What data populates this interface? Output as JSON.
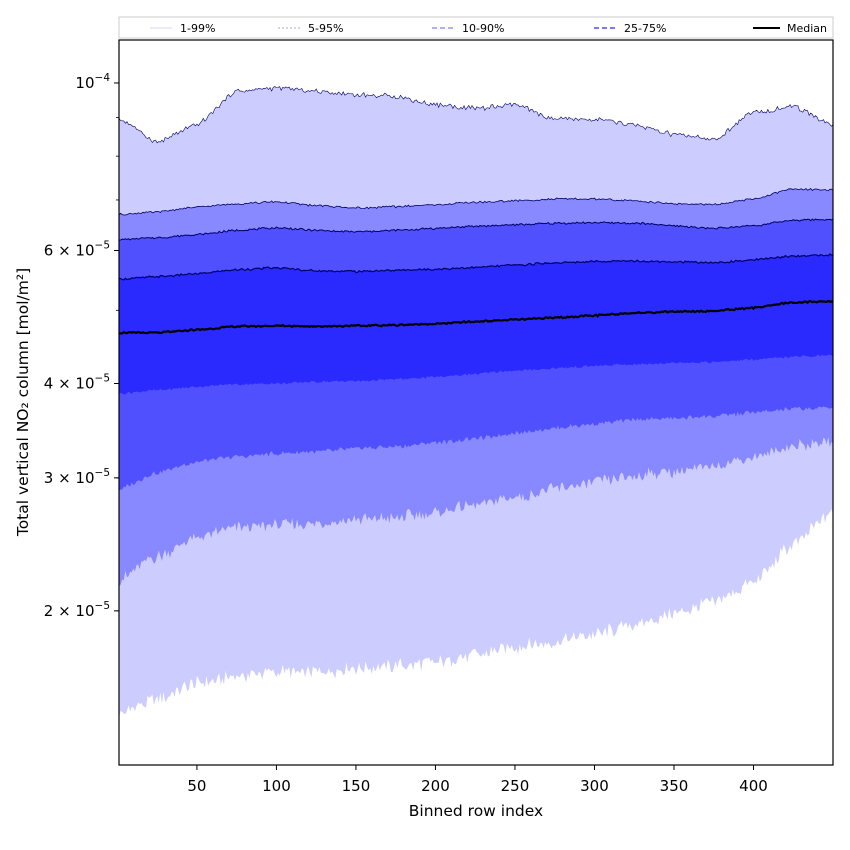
{
  "chart_data": {
    "type": "area",
    "xlabel": "Binned row index",
    "ylabel": "Total vertical NO₂ column [mol/m²]",
    "xlim": [
      1,
      450
    ],
    "ylim": [
      1.25e-05,
      0.000114
    ],
    "yscale": "log",
    "x_ticks": [
      50,
      100,
      150,
      200,
      250,
      300,
      350,
      400
    ],
    "y_ticks": [
      {
        "value": 2e-05,
        "mantissa": "2",
        "exponent": "−5"
      },
      {
        "value": 3e-05,
        "mantissa": "3",
        "exponent": "−5"
      },
      {
        "value": 4e-05,
        "mantissa": "4",
        "exponent": "−5"
      },
      {
        "value": 6e-05,
        "mantissa": "6",
        "exponent": "−5"
      },
      {
        "value": 0.0001,
        "mantissa": "",
        "exponent": "−4"
      }
    ],
    "legend_position": "top (above plot, full width)",
    "colors": {
      "band_1_99": "#ccccff",
      "band_5_95": "#8888ff",
      "band_10_90": "#5050ff",
      "band_25_75": "#2a2aff",
      "median": "#000000",
      "upper_edge_line": "#000066"
    },
    "x": [
      1,
      25,
      50,
      75,
      100,
      125,
      150,
      175,
      200,
      225,
      250,
      275,
      300,
      325,
      350,
      375,
      400,
      425,
      450
    ],
    "series": [
      {
        "name": "p1",
        "values": [
          1.46e-05,
          1.53e-05,
          1.6e-05,
          1.64e-05,
          1.66e-05,
          1.66e-05,
          1.68e-05,
          1.69e-05,
          1.71e-05,
          1.75e-05,
          1.79e-05,
          1.82e-05,
          1.86e-05,
          1.92e-05,
          1.98e-05,
          2.05e-05,
          2.18e-05,
          2.45e-05,
          2.7e-05
        ]
      },
      {
        "name": "p5",
        "values": [
          2.2e-05,
          2.36e-05,
          2.5e-05,
          2.58e-05,
          2.6e-05,
          2.61e-05,
          2.64e-05,
          2.66e-05,
          2.7e-05,
          2.76e-05,
          2.83e-05,
          2.9e-05,
          2.96e-05,
          3.02e-05,
          3.06e-05,
          3.11e-05,
          3.2e-05,
          3.31e-05,
          3.35e-05
        ]
      },
      {
        "name": "p10",
        "values": [
          2.9e-05,
          3.05e-05,
          3.15e-05,
          3.2e-05,
          3.23e-05,
          3.25e-05,
          3.28e-05,
          3.3e-05,
          3.34e-05,
          3.38e-05,
          3.44e-05,
          3.49e-05,
          3.54e-05,
          3.58e-05,
          3.6e-05,
          3.62e-05,
          3.66e-05,
          3.7e-05,
          3.72e-05
        ]
      },
      {
        "name": "p25",
        "values": [
          3.88e-05,
          3.92e-05,
          3.96e-05,
          3.99e-05,
          4e-05,
          4.02e-05,
          4.03e-05,
          4.05e-05,
          4.08e-05,
          4.12e-05,
          4.16e-05,
          4.19e-05,
          4.22e-05,
          4.24e-05,
          4.26e-05,
          4.27e-05,
          4.3e-05,
          4.34e-05,
          4.36e-05
        ]
      },
      {
        "name": "Median",
        "values": [
          4.67e-05,
          4.67e-05,
          4.71e-05,
          4.76e-05,
          4.77e-05,
          4.76e-05,
          4.77e-05,
          4.78e-05,
          4.8e-05,
          4.83e-05,
          4.86e-05,
          4.89e-05,
          4.92e-05,
          4.96e-05,
          4.98e-05,
          4.99e-05,
          5.04e-05,
          5.12e-05,
          5.14e-05
        ]
      },
      {
        "name": "p75",
        "values": [
          5.5e-05,
          5.54e-05,
          5.59e-05,
          5.66e-05,
          5.69e-05,
          5.64e-05,
          5.63e-05,
          5.65e-05,
          5.67e-05,
          5.7e-05,
          5.74e-05,
          5.78e-05,
          5.8e-05,
          5.81e-05,
          5.8e-05,
          5.78e-05,
          5.83e-05,
          5.9e-05,
          5.92e-05
        ]
      },
      {
        "name": "p90",
        "values": [
          6.2e-05,
          6.24e-05,
          6.3e-05,
          6.38e-05,
          6.43e-05,
          6.38e-05,
          6.35e-05,
          6.38e-05,
          6.42e-05,
          6.46e-05,
          6.49e-05,
          6.52e-05,
          6.53e-05,
          6.52e-05,
          6.47e-05,
          6.42e-05,
          6.47e-05,
          6.58e-05,
          6.6e-05
        ]
      },
      {
        "name": "p95",
        "values": [
          6.7e-05,
          6.75e-05,
          6.85e-05,
          6.92e-05,
          6.96e-05,
          6.88e-05,
          6.83e-05,
          6.86e-05,
          6.9e-05,
          6.95e-05,
          6.98e-05,
          7.02e-05,
          7.02e-05,
          6.98e-05,
          6.92e-05,
          6.9e-05,
          7.02e-05,
          7.24e-05,
          7.22e-05
        ]
      },
      {
        "name": "p99",
        "values": [
          8.95e-05,
          8.35e-05,
          8.8e-05,
          9.75e-05,
          9.85e-05,
          9.75e-05,
          9.65e-05,
          9.6e-05,
          9.35e-05,
          9.25e-05,
          9.35e-05,
          8.95e-05,
          8.95e-05,
          8.8e-05,
          8.55e-05,
          8.4e-05,
          9.15e-05,
          9.3e-05,
          8.8e-05
        ]
      }
    ],
    "legend": [
      {
        "label": "1-99%",
        "color": "#d4d4f4",
        "dash": "none",
        "width": 1
      },
      {
        "label": "5-95%",
        "color": "#a8a8e0",
        "dash": "2,2",
        "width": 1
      },
      {
        "label": "10-90%",
        "color": "#8080ee",
        "dash": "5,3",
        "width": 1.2
      },
      {
        "label": "25-75%",
        "color": "#5050e0",
        "dash": "5,3",
        "width": 1.4
      },
      {
        "label": "Median",
        "color": "#000000",
        "dash": "none",
        "width": 2
      }
    ]
  }
}
